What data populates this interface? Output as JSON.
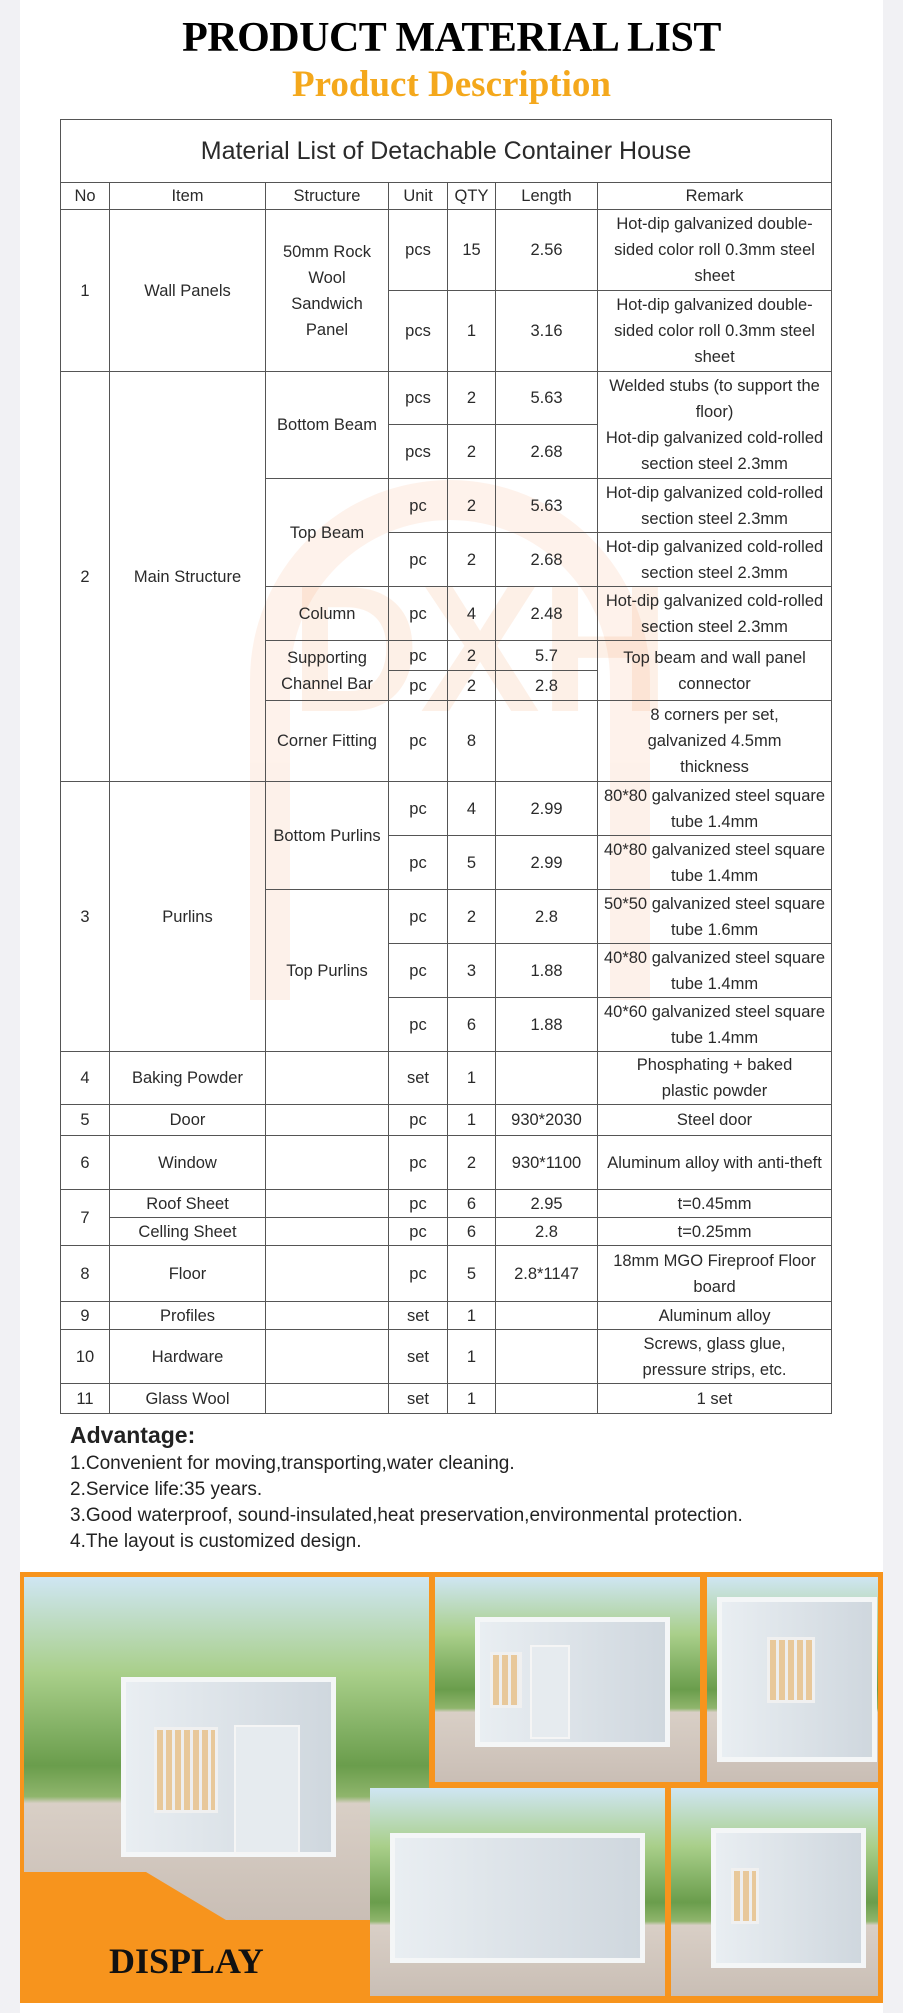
{
  "header": {
    "title": "PRODUCT MATERIAL LIST",
    "subtitle": "Product Description"
  },
  "table": {
    "title": "Material List of Detachable Container House",
    "columns": [
      "No",
      "Item",
      "Structure",
      "Unit",
      "QTY",
      "Length",
      "Remark"
    ],
    "watermark": "DXH",
    "rows": [
      {
        "h": 81,
        "cells": [
          {
            "t": "1",
            "rs": 2
          },
          {
            "t": "Wall Panels",
            "rs": 2
          },
          {
            "t": "50mm Rock\nWool\nSandwich\nPanel",
            "rs": 2
          },
          {
            "t": "pcs"
          },
          {
            "t": "15"
          },
          {
            "t": "2.56"
          },
          {
            "t": "Hot-dip galvanized double-sided color roll 0.3mm steel sheet"
          }
        ]
      },
      {
        "h": 81,
        "cells": [
          {
            "t": "pcs"
          },
          {
            "t": "1"
          },
          {
            "t": "3.16"
          },
          {
            "t": "Hot-dip galvanized double-sided color roll 0.3mm steel sheet"
          }
        ]
      },
      {
        "h": 53,
        "cells": [
          {
            "t": "2",
            "rs": 8
          },
          {
            "t": "Main Structure",
            "rs": 8
          },
          {
            "t": "Bottom Beam",
            "rs": 2
          },
          {
            "t": "pcs"
          },
          {
            "t": "2"
          },
          {
            "t": "5.63"
          },
          {
            "t": "Welded stubs (to support the floor)\nHot-dip galvanized cold-rolled section steel 2.3mm",
            "rs": 2
          }
        ]
      },
      {
        "h": 54,
        "cells": [
          {
            "t": "pcs"
          },
          {
            "t": "2"
          },
          {
            "t": "2.68"
          }
        ]
      },
      {
        "h": 54,
        "cells": [
          {
            "t": "Top Beam",
            "rs": 2
          },
          {
            "t": "pc"
          },
          {
            "t": "2"
          },
          {
            "t": "5.63"
          },
          {
            "t": "Hot-dip galvanized cold-rolled section steel 2.3mm"
          }
        ]
      },
      {
        "h": 54,
        "cells": [
          {
            "t": "pc"
          },
          {
            "t": "2"
          },
          {
            "t": "2.68"
          },
          {
            "t": "Hot-dip galvanized cold-rolled section steel 2.3mm"
          }
        ]
      },
      {
        "h": 54,
        "cells": [
          {
            "t": "Column"
          },
          {
            "t": "pc"
          },
          {
            "t": "4"
          },
          {
            "t": "2.48"
          },
          {
            "t": "Hot-dip galvanized cold-rolled section steel 2.3mm"
          }
        ]
      },
      {
        "h": 30,
        "cells": [
          {
            "t": "Supporting\nChannel Bar",
            "rs": 2
          },
          {
            "t": "pc"
          },
          {
            "t": "2"
          },
          {
            "t": "5.7"
          },
          {
            "t": "Top beam and wall panel connector",
            "rs": 2
          }
        ]
      },
      {
        "h": 30,
        "cells": [
          {
            "t": "pc"
          },
          {
            "t": "2"
          },
          {
            "t": "2.8"
          }
        ]
      },
      {
        "h": 81,
        "cells": [
          {
            "t": "Corner Fitting"
          },
          {
            "t": "pc"
          },
          {
            "t": "8"
          },
          {
            "t": ""
          },
          {
            "t": "8 corners per set,\ngalvanized 4.5mm\nthickness"
          }
        ]
      },
      {
        "h": 54,
        "cells": [
          {
            "t": "3",
            "rs": 5
          },
          {
            "t": "Purlins",
            "rs": 5
          },
          {
            "t": "Bottom Purlins",
            "rs": 2
          },
          {
            "t": "pc"
          },
          {
            "t": "4"
          },
          {
            "t": "2.99"
          },
          {
            "t": "80*80 galvanized steel square tube 1.4mm"
          }
        ]
      },
      {
        "h": 54,
        "cells": [
          {
            "t": "pc"
          },
          {
            "t": "5"
          },
          {
            "t": "2.99"
          },
          {
            "t": "40*80 galvanized steel square tube 1.4mm"
          }
        ]
      },
      {
        "h": 54,
        "cells": [
          {
            "t": "Top Purlins",
            "rs": 3
          },
          {
            "t": "pc"
          },
          {
            "t": "2"
          },
          {
            "t": "2.8"
          },
          {
            "t": "50*50 galvanized steel square tube 1.6mm"
          }
        ]
      },
      {
        "h": 54,
        "cells": [
          {
            "t": "pc"
          },
          {
            "t": "3"
          },
          {
            "t": "1.88"
          },
          {
            "t": "40*80 galvanized steel square tube 1.4mm"
          }
        ]
      },
      {
        "h": 54,
        "cells": [
          {
            "t": "pc"
          },
          {
            "t": "6"
          },
          {
            "t": "1.88"
          },
          {
            "t": "40*60 galvanized steel square tube 1.4mm"
          }
        ]
      },
      {
        "h": 53,
        "cells": [
          {
            "t": "4"
          },
          {
            "t": "Baking Powder"
          },
          {
            "t": ""
          },
          {
            "t": "set"
          },
          {
            "t": "1"
          },
          {
            "t": ""
          },
          {
            "t": "Phosphating + baked\nplastic powder"
          }
        ]
      },
      {
        "h": 31,
        "cells": [
          {
            "t": "5"
          },
          {
            "t": "Door"
          },
          {
            "t": ""
          },
          {
            "t": "pc"
          },
          {
            "t": "1"
          },
          {
            "t": "930*2030"
          },
          {
            "t": "Steel door"
          }
        ]
      },
      {
        "h": 54,
        "cells": [
          {
            "t": "6"
          },
          {
            "t": "Window"
          },
          {
            "t": ""
          },
          {
            "t": "pc"
          },
          {
            "t": "2"
          },
          {
            "t": "930*1100"
          },
          {
            "t": "Aluminum alloy with anti-theft"
          }
        ]
      },
      {
        "h": 28,
        "cells": [
          {
            "t": "7",
            "rs": 2
          },
          {
            "t": "Roof Sheet"
          },
          {
            "t": ""
          },
          {
            "t": "pc"
          },
          {
            "t": "6"
          },
          {
            "t": "2.95"
          },
          {
            "t": "t=0.45mm"
          }
        ]
      },
      {
        "h": 28,
        "cells": [
          {
            "t": "Celling Sheet"
          },
          {
            "t": ""
          },
          {
            "t": "pc"
          },
          {
            "t": "6"
          },
          {
            "t": "2.8"
          },
          {
            "t": "t=0.25mm"
          }
        ]
      },
      {
        "h": 56,
        "cells": [
          {
            "t": "8"
          },
          {
            "t": "Floor"
          },
          {
            "t": ""
          },
          {
            "t": "pc"
          },
          {
            "t": "5"
          },
          {
            "t": "2.8*1147"
          },
          {
            "t": "18mm MGO Fireproof Floor board"
          }
        ]
      },
      {
        "h": 28,
        "cells": [
          {
            "t": "9"
          },
          {
            "t": "Profiles"
          },
          {
            "t": ""
          },
          {
            "t": "set"
          },
          {
            "t": "1"
          },
          {
            "t": ""
          },
          {
            "t": "Aluminum alloy"
          }
        ]
      },
      {
        "h": 54,
        "cells": [
          {
            "t": "10"
          },
          {
            "t": "Hardware"
          },
          {
            "t": ""
          },
          {
            "t": "set"
          },
          {
            "t": "1"
          },
          {
            "t": ""
          },
          {
            "t": "Screws, glass glue,\npressure strips, etc."
          }
        ]
      },
      {
        "h": 30,
        "cells": [
          {
            "t": "11"
          },
          {
            "t": "Glass Wool"
          },
          {
            "t": ""
          },
          {
            "t": "set"
          },
          {
            "t": "1"
          },
          {
            "t": ""
          },
          {
            "t": "1 set"
          }
        ]
      }
    ]
  },
  "advantage": {
    "heading": "Advantage:",
    "items": [
      "1.Convenient for moving,transporting,water cleaning.",
      "2.Service life:35 years.",
      "3.Good waterproof, sound-insulated,heat preservation,environmental protection.",
      "4.The layout is customized design."
    ]
  },
  "display": {
    "label": "DISPLAY",
    "accent_color": "#f7941d"
  }
}
